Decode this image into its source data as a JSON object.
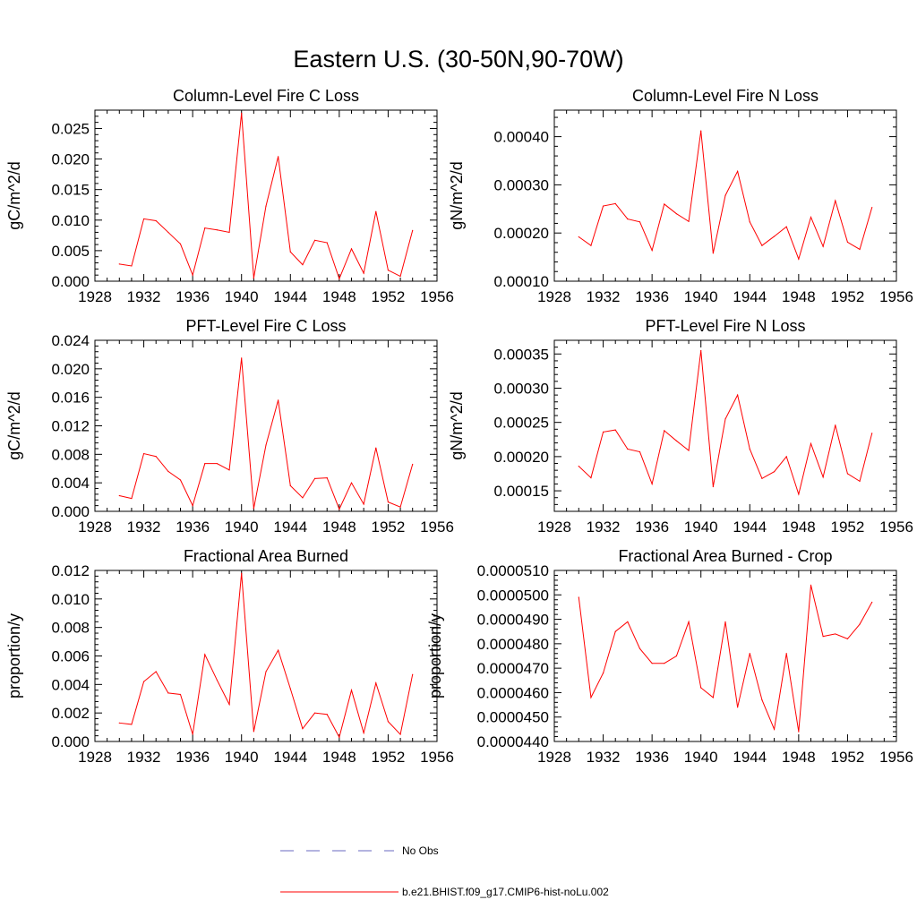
{
  "figure": {
    "title": "Eastern U.S. (30-50N,90-70W)"
  },
  "legend": {
    "entries": [
      {
        "label": "No Obs",
        "color": "#6a6ac0",
        "style": "dashed"
      },
      {
        "label": "b.e21.BHIST.f09_g17.CMIP6-hist-noLu.002",
        "color": "#ff0000",
        "style": "solid"
      }
    ]
  },
  "chart_data": [
    {
      "type": "line",
      "title": "Column-Level Fire C Loss",
      "xlabel": "",
      "ylabel": "gC/m^2/d",
      "xlim": [
        1928,
        1956
      ],
      "ylim": [
        0,
        0.028
      ],
      "x_ticks": [
        1928,
        1932,
        1936,
        1940,
        1944,
        1948,
        1952,
        1956
      ],
      "y_ticks": [
        0.0,
        0.005,
        0.01,
        0.015,
        0.02,
        0.025
      ],
      "x_tick_labels": [
        "1928",
        "1932",
        "1936",
        "1940",
        "1944",
        "1948",
        "1952",
        "1956"
      ],
      "y_tick_labels": [
        "0.000",
        "0.005",
        "0.010",
        "0.015",
        "0.020",
        "0.025"
      ],
      "grid": false,
      "x": [
        1930,
        1931,
        1932,
        1933,
        1934,
        1935,
        1936,
        1937,
        1938,
        1939,
        1940,
        1941,
        1942,
        1943,
        1944,
        1945,
        1946,
        1947,
        1948,
        1949,
        1950,
        1951,
        1952,
        1953,
        1954
      ],
      "series": [
        {
          "color": "#ff0000",
          "values": [
            0.0028,
            0.0025,
            0.0102,
            0.0099,
            0.008,
            0.0061,
            0.001,
            0.0087,
            0.0084,
            0.008,
            0.0275,
            0.0005,
            0.0123,
            0.0204,
            0.0048,
            0.0027,
            0.0067,
            0.0063,
            0.0004,
            0.0053,
            0.0013,
            0.0114,
            0.0018,
            0.0008,
            0.0083
          ]
        }
      ]
    },
    {
      "type": "line",
      "title": "Column-Level Fire N Loss",
      "xlabel": "",
      "ylabel": "gN/m^2/d",
      "xlim": [
        1928,
        1956
      ],
      "ylim": [
        0.0001,
        0.000455
      ],
      "x_ticks": [
        1928,
        1932,
        1936,
        1940,
        1944,
        1948,
        1952,
        1956
      ],
      "y_ticks": [
        0.0001,
        0.0002,
        0.0003,
        0.0004
      ],
      "x_tick_labels": [
        "1928",
        "1932",
        "1936",
        "1940",
        "1944",
        "1948",
        "1952",
        "1956"
      ],
      "y_tick_labels": [
        "0.00010",
        "0.00020",
        "0.00030",
        "0.00040"
      ],
      "grid": false,
      "x": [
        1930,
        1931,
        1932,
        1933,
        1934,
        1935,
        1936,
        1937,
        1938,
        1939,
        1940,
        1941,
        1942,
        1943,
        1944,
        1945,
        1946,
        1947,
        1948,
        1949,
        1950,
        1951,
        1952,
        1953,
        1954
      ],
      "series": [
        {
          "color": "#ff0000",
          "values": [
            0.000192,
            0.000174,
            0.000256,
            0.000261,
            0.000229,
            0.000223,
            0.000164,
            0.00026,
            0.00024,
            0.000224,
            0.000412,
            0.000158,
            0.000278,
            0.000328,
            0.000223,
            0.000174,
            0.000193,
            0.000213,
            0.000146,
            0.000233,
            0.000172,
            0.000267,
            0.000181,
            0.000166,
            0.000253
          ]
        }
      ]
    },
    {
      "type": "line",
      "title": "PFT-Level Fire C Loss",
      "xlabel": "",
      "ylabel": "gC/m^2/d",
      "xlim": [
        1928,
        1956
      ],
      "ylim": [
        0,
        0.024
      ],
      "x_ticks": [
        1928,
        1932,
        1936,
        1940,
        1944,
        1948,
        1952,
        1956
      ],
      "y_ticks": [
        0.0,
        0.004,
        0.008,
        0.012,
        0.016,
        0.02,
        0.024
      ],
      "x_tick_labels": [
        "1928",
        "1932",
        "1936",
        "1940",
        "1944",
        "1948",
        "1952",
        "1956"
      ],
      "y_tick_labels": [
        "0.000",
        "0.004",
        "0.008",
        "0.012",
        "0.016",
        "0.020",
        "0.024"
      ],
      "grid": false,
      "x": [
        1930,
        1931,
        1932,
        1933,
        1934,
        1935,
        1936,
        1937,
        1938,
        1939,
        1940,
        1941,
        1942,
        1943,
        1944,
        1945,
        1946,
        1947,
        1948,
        1949,
        1950,
        1951,
        1952,
        1953,
        1954
      ],
      "series": [
        {
          "color": "#ff0000",
          "values": [
            0.0022,
            0.0018,
            0.0081,
            0.0077,
            0.0056,
            0.0044,
            0.0008,
            0.0067,
            0.0067,
            0.0058,
            0.0215,
            0.0004,
            0.0093,
            0.0156,
            0.0036,
            0.0019,
            0.0046,
            0.0047,
            0.0003,
            0.004,
            0.001,
            0.0089,
            0.0013,
            0.0006,
            0.0066
          ]
        }
      ]
    },
    {
      "type": "line",
      "title": "PFT-Level Fire N Loss",
      "xlabel": "",
      "ylabel": "gN/m^2/d",
      "xlim": [
        1928,
        1956
      ],
      "ylim": [
        0.00012,
        0.00037
      ],
      "x_ticks": [
        1928,
        1932,
        1936,
        1940,
        1944,
        1948,
        1952,
        1956
      ],
      "y_ticks": [
        0.00015,
        0.0002,
        0.00025,
        0.0003,
        0.00035
      ],
      "x_tick_labels": [
        "1928",
        "1932",
        "1936",
        "1940",
        "1944",
        "1948",
        "1952",
        "1956"
      ],
      "y_tick_labels": [
        "0.00015",
        "0.00020",
        "0.00025",
        "0.00030",
        "0.00035"
      ],
      "grid": false,
      "x": [
        1930,
        1931,
        1932,
        1933,
        1934,
        1935,
        1936,
        1937,
        1938,
        1939,
        1940,
        1941,
        1942,
        1943,
        1944,
        1945,
        1946,
        1947,
        1948,
        1949,
        1950,
        1951,
        1952,
        1953,
        1954
      ],
      "series": [
        {
          "color": "#ff0000",
          "values": [
            0.000186,
            0.000169,
            0.000236,
            0.000239,
            0.000211,
            0.000207,
            0.00016,
            0.000238,
            0.000223,
            0.000209,
            0.000355,
            0.000156,
            0.000255,
            0.00029,
            0.000211,
            0.000168,
            0.000178,
            0.0002,
            0.000145,
            0.000219,
            0.00017,
            0.000246,
            0.000175,
            0.000164,
            0.000234
          ]
        }
      ]
    },
    {
      "type": "line",
      "title": "Fractional Area Burned",
      "xlabel": "",
      "ylabel": "proportion/y",
      "xlim": [
        1928,
        1956
      ],
      "ylim": [
        0,
        0.012
      ],
      "x_ticks": [
        1928,
        1932,
        1936,
        1940,
        1944,
        1948,
        1952,
        1956
      ],
      "y_ticks": [
        0.0,
        0.002,
        0.004,
        0.006,
        0.008,
        0.01,
        0.012
      ],
      "x_tick_labels": [
        "1928",
        "1932",
        "1936",
        "1940",
        "1944",
        "1948",
        "1952",
        "1956"
      ],
      "y_tick_labels": [
        "0.000",
        "0.002",
        "0.004",
        "0.006",
        "0.008",
        "0.010",
        "0.012"
      ],
      "grid": false,
      "x": [
        1930,
        1931,
        1932,
        1933,
        1934,
        1935,
        1936,
        1937,
        1938,
        1939,
        1940,
        1941,
        1942,
        1943,
        1944,
        1945,
        1946,
        1947,
        1948,
        1949,
        1950,
        1951,
        1952,
        1953,
        1954
      ],
      "series": [
        {
          "color": "#ff0000",
          "values": [
            0.0013,
            0.0012,
            0.0042,
            0.0049,
            0.0034,
            0.0033,
            0.0005,
            0.0061,
            0.0043,
            0.0026,
            0.0118,
            0.0007,
            0.0049,
            0.0064,
            0.0037,
            0.0009,
            0.002,
            0.0019,
            0.0003,
            0.0036,
            0.0006,
            0.0041,
            0.0014,
            0.0005,
            0.0047
          ]
        }
      ]
    },
    {
      "type": "line",
      "title": "Fractional Area Burned - Crop",
      "xlabel": "",
      "ylabel": "proportion/y",
      "xlim": [
        1928,
        1956
      ],
      "ylim": [
        4.4e-05,
        5.1e-05
      ],
      "x_ticks": [
        1928,
        1932,
        1936,
        1940,
        1944,
        1948,
        1952,
        1956
      ],
      "y_ticks": [
        4.4e-05,
        4.5e-05,
        4.6e-05,
        4.7e-05,
        4.8e-05,
        4.9e-05,
        5e-05,
        5.1e-05
      ],
      "x_tick_labels": [
        "1928",
        "1932",
        "1936",
        "1940",
        "1944",
        "1948",
        "1952",
        "1956"
      ],
      "y_tick_labels": [
        "0.0000440",
        "0.0000450",
        "0.0000460",
        "0.0000470",
        "0.0000480",
        "0.0000490",
        "0.0000500",
        "0.0000510"
      ],
      "grid": false,
      "x": [
        1930,
        1931,
        1932,
        1933,
        1934,
        1935,
        1936,
        1937,
        1938,
        1939,
        1940,
        1941,
        1942,
        1943,
        1944,
        1945,
        1946,
        1947,
        1948,
        1949,
        1950,
        1951,
        1952,
        1953,
        1954
      ],
      "series": [
        {
          "color": "#ff0000",
          "values": [
            4.99e-05,
            4.58e-05,
            4.68e-05,
            4.85e-05,
            4.89e-05,
            4.78e-05,
            4.72e-05,
            4.72e-05,
            4.75e-05,
            4.89e-05,
            4.62e-05,
            4.58e-05,
            4.89e-05,
            4.54e-05,
            4.76e-05,
            4.57e-05,
            4.45e-05,
            4.76e-05,
            4.44e-05,
            5.04e-05,
            4.83e-05,
            4.84e-05,
            4.82e-05,
            4.88e-05,
            4.97e-05
          ]
        }
      ]
    }
  ]
}
